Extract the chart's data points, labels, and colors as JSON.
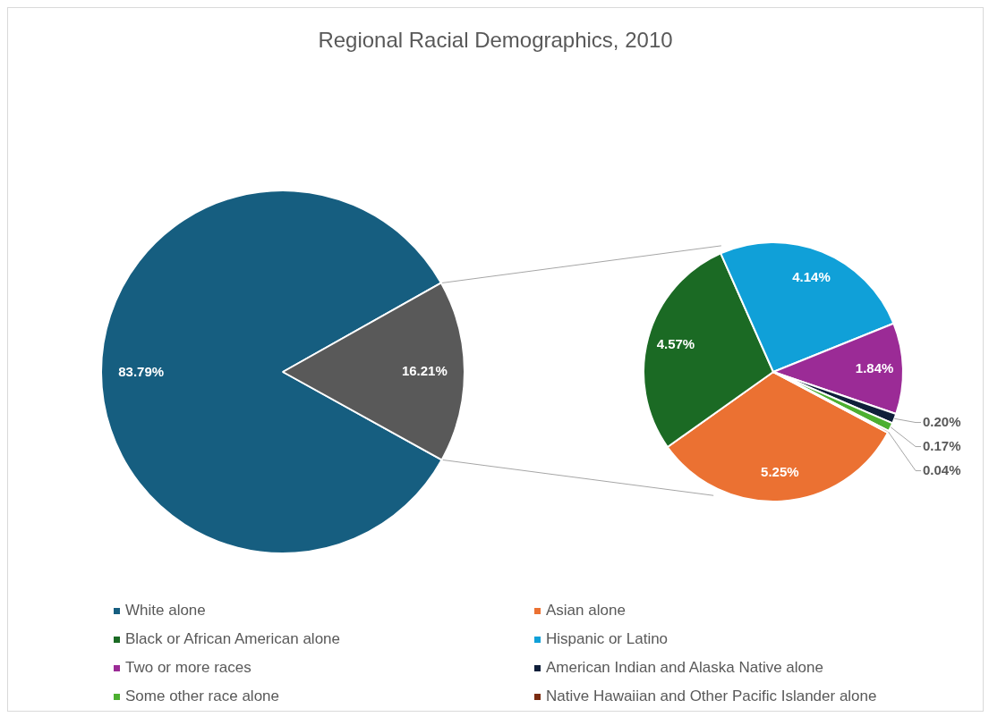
{
  "chart_data": [
    {
      "type": "pie",
      "title": "Regional Racial Demographics, 2010",
      "categories": [
        "White alone",
        null
      ],
      "values": [
        83.79,
        16.21
      ],
      "colors": [
        "#165e80",
        "#595959"
      ],
      "value_labels": [
        "83.79%",
        "16.21%"
      ],
      "legend": "bottom"
    },
    {
      "type": "pie",
      "categories": [
        "Asian alone",
        "Black or African American alone",
        "Hispanic or Latino",
        "Two or more races",
        "American Indian and Alaska Native alone",
        "Some other race alone",
        "Native Hawaiian and Other Pacific Islander alone"
      ],
      "values": [
        5.25,
        4.57,
        4.14,
        1.84,
        0.2,
        0.17,
        0.04
      ],
      "colors": [
        "#eb7132",
        "#1b6a24",
        "#10a0d8",
        "#9b2b96",
        "#0f1f3a",
        "#4caf30",
        "#7a2b10"
      ],
      "value_labels": [
        "5.25%",
        "4.57%",
        "4.14%",
        "1.84%",
        "0.20%",
        "0.17%",
        "0.04%"
      ],
      "legend": "bottom"
    }
  ]
}
